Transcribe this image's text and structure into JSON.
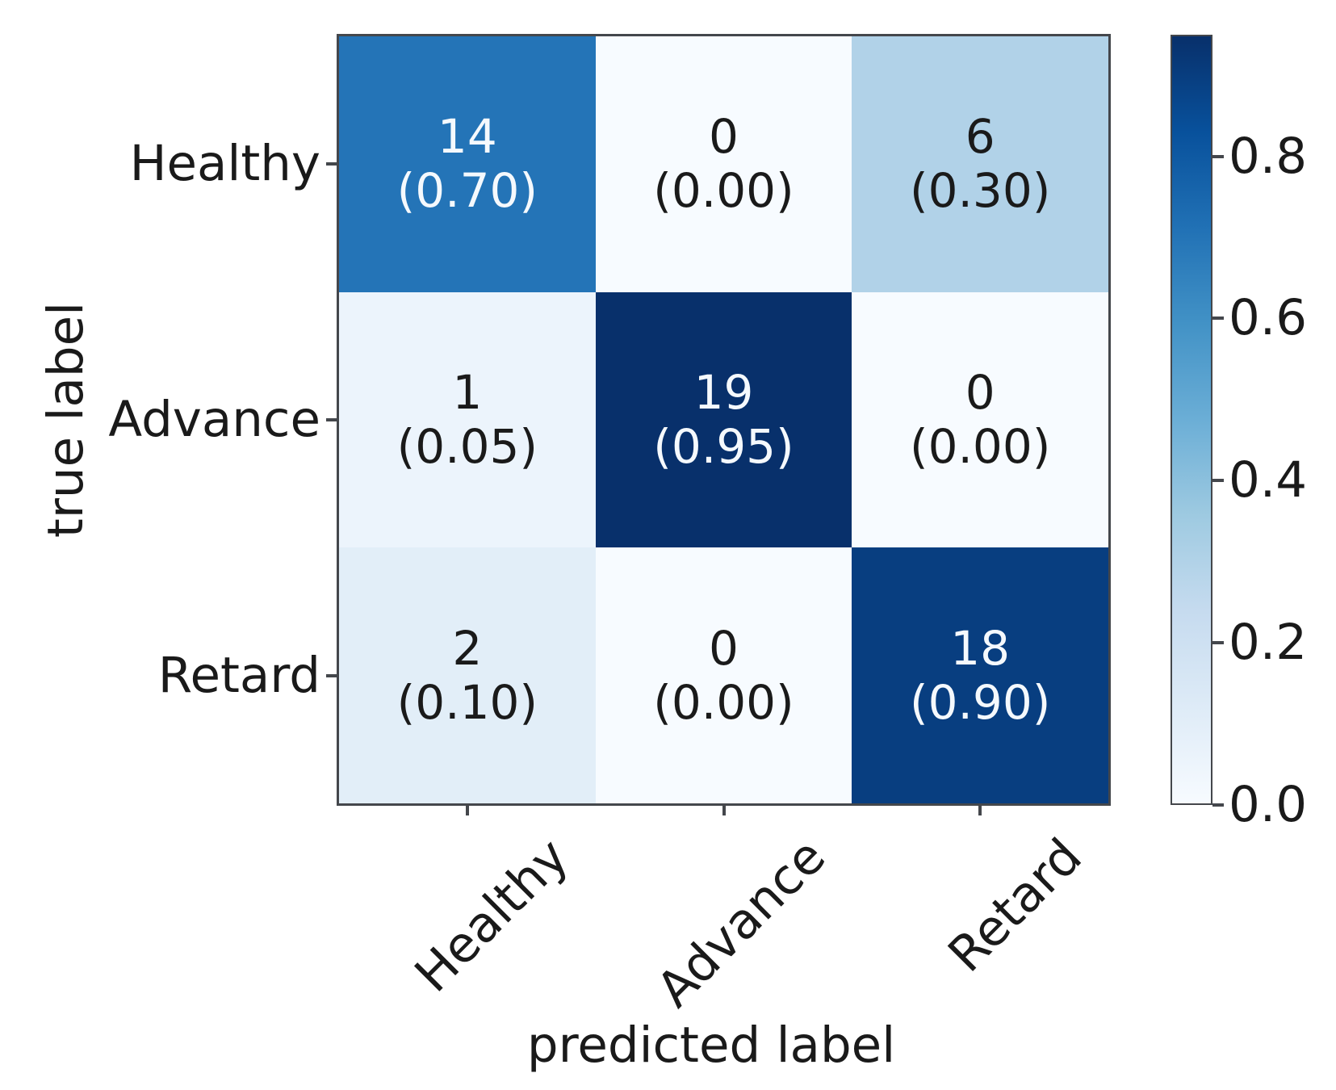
{
  "chart_data": {
    "type": "heatmap",
    "subtype": "confusion_matrix",
    "title": "",
    "xlabel": "predicted label",
    "ylabel": "true label",
    "x_categories": [
      "Healthy",
      "Advance",
      "Retard"
    ],
    "y_categories": [
      "Healthy",
      "Advance",
      "Retard"
    ],
    "counts_matrix": [
      [
        14,
        0,
        6
      ],
      [
        1,
        19,
        0
      ],
      [
        2,
        0,
        18
      ]
    ],
    "proportions_matrix": [
      [
        0.7,
        0.0,
        0.3
      ],
      [
        0.05,
        0.95,
        0.0
      ],
      [
        0.1,
        0.0,
        0.9
      ]
    ],
    "cell_label_format": "count newline (proportion)",
    "cells": [
      {
        "true": "Healthy",
        "predicted": "Healthy",
        "count": 14,
        "proportion": 0.7
      },
      {
        "true": "Healthy",
        "predicted": "Advance",
        "count": 0,
        "proportion": 0.0
      },
      {
        "true": "Healthy",
        "predicted": "Retard",
        "count": 6,
        "proportion": 0.3
      },
      {
        "true": "Advance",
        "predicted": "Healthy",
        "count": 1,
        "proportion": 0.05
      },
      {
        "true": "Advance",
        "predicted": "Advance",
        "count": 19,
        "proportion": 0.95
      },
      {
        "true": "Advance",
        "predicted": "Retard",
        "count": 0,
        "proportion": 0.0
      },
      {
        "true": "Retard",
        "predicted": "Healthy",
        "count": 2,
        "proportion": 0.1
      },
      {
        "true": "Retard",
        "predicted": "Advance",
        "count": 0,
        "proportion": 0.0
      },
      {
        "true": "Retard",
        "predicted": "Retard",
        "count": 18,
        "proportion": 0.9
      }
    ],
    "colorbar": {
      "position": "right",
      "tick_labels": [
        "0.8",
        "0.6",
        "0.4",
        "0.2",
        "0.0"
      ],
      "tick_values": [
        0.8,
        0.6,
        0.4,
        0.2,
        0.0
      ],
      "vmin": 0.0,
      "vmax": 0.95
    },
    "colormap": {
      "name": "Blues",
      "anchors": [
        "#f7fbff",
        "#deebf7",
        "#c6dbef",
        "#9ecae1",
        "#6baed6",
        "#4292c6",
        "#2171b5",
        "#08519c",
        "#08306b"
      ]
    },
    "grid": false,
    "styles": {
      "background": "#ffffff",
      "spine_color": "#44474c",
      "tick_color": "#44474c",
      "label_color": "#1a1a1a",
      "cell_text_dark": "#1a1a1a",
      "cell_text_light": "#f5f9fd"
    }
  }
}
